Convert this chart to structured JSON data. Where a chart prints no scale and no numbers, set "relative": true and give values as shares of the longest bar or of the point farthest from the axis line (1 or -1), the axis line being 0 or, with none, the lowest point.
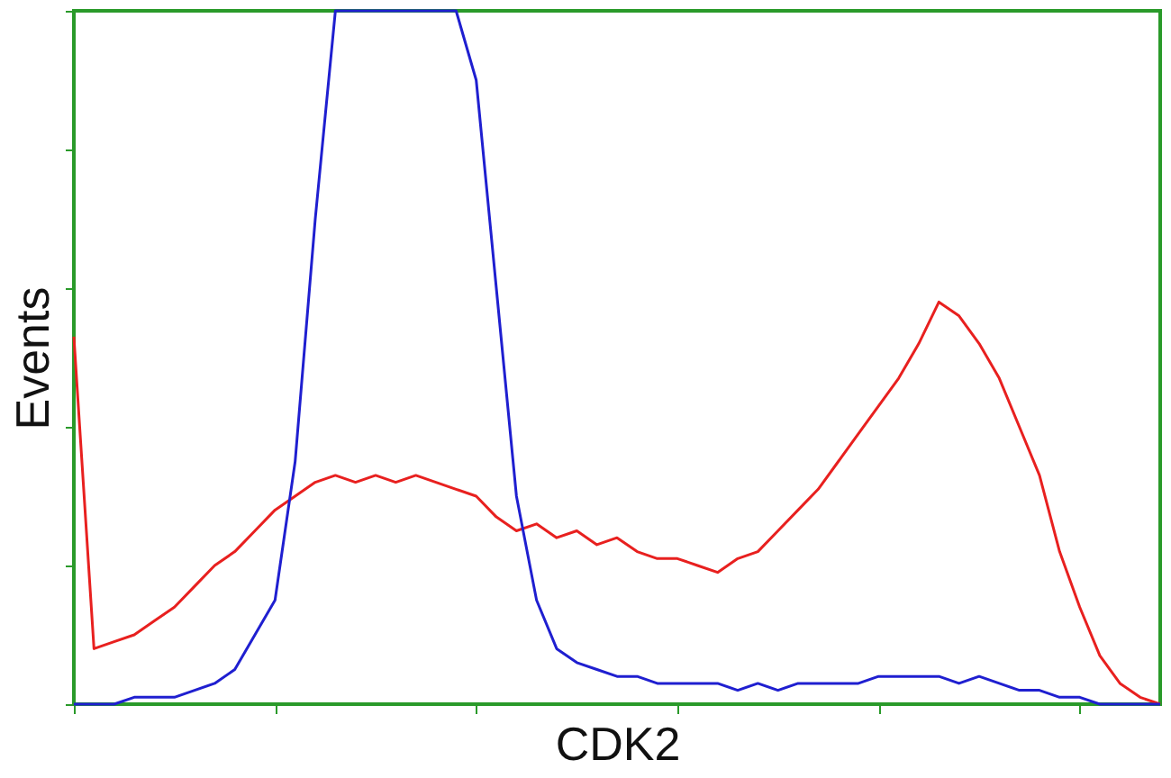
{
  "chart_data": {
    "type": "line",
    "relative": true,
    "xlabel": "CDK2",
    "ylabel": "Events",
    "tick_labels": false,
    "grid": false,
    "legend": false,
    "marker": "none",
    "line_style": "solid",
    "categories": [
      null,
      null,
      null,
      null,
      null,
      null,
      null,
      null,
      null,
      null,
      null,
      null,
      null,
      null,
      null,
      null,
      null,
      null,
      null,
      null,
      null,
      null,
      null,
      null,
      null,
      null,
      null,
      null,
      null,
      null,
      null,
      null,
      null,
      null,
      null,
      null,
      null,
      null,
      null,
      null,
      null,
      null,
      null,
      null,
      null,
      null,
      null,
      null,
      null,
      null,
      null,
      null,
      null,
      null,
      null
    ],
    "series": [
      {
        "color": "#e8201f",
        "values": [
          0.53,
          0.08,
          0.09,
          0.1,
          0.12,
          0.14,
          0.17,
          0.2,
          0.22,
          0.25,
          0.28,
          0.3,
          0.32,
          0.33,
          0.32,
          0.33,
          0.32,
          0.33,
          0.32,
          0.31,
          0.3,
          0.27,
          0.25,
          0.26,
          0.24,
          0.25,
          0.23,
          0.24,
          0.22,
          0.21,
          0.21,
          0.2,
          0.19,
          0.21,
          0.22,
          0.25,
          0.28,
          0.31,
          0.35,
          0.39,
          0.43,
          0.47,
          0.52,
          0.58,
          0.56,
          0.52,
          0.47,
          0.4,
          0.33,
          0.22,
          0.14,
          0.07,
          0.03,
          0.01,
          0
        ]
      },
      {
        "color": "#1f1fd0",
        "values": [
          0,
          0,
          0,
          0.01,
          0.01,
          0.01,
          0.02,
          0.03,
          0.05,
          0.1,
          0.15,
          0.35,
          0.7,
          1,
          1,
          1,
          1,
          1,
          1,
          1,
          0.9,
          0.6,
          0.3,
          0.15,
          0.08,
          0.06,
          0.05,
          0.04,
          0.04,
          0.03,
          0.03,
          0.03,
          0.03,
          0.02,
          0.03,
          0.02,
          0.03,
          0.03,
          0.03,
          0.03,
          0.04,
          0.04,
          0.04,
          0.04,
          0.03,
          0.04,
          0.03,
          0.02,
          0.02,
          0.01,
          0.01,
          0,
          0,
          0,
          0
        ]
      }
    ]
  }
}
